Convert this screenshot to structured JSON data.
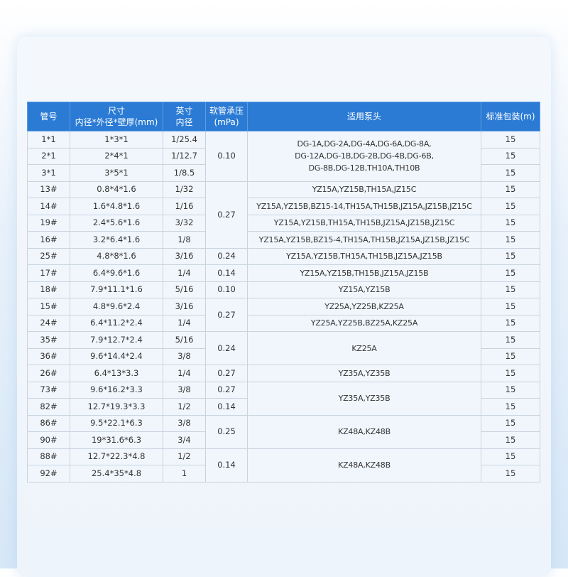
{
  "headers": [
    "管号",
    "尺寸\n内径*外径*壁厚(mm)",
    "英寸\n内径",
    "软管承压\n(mPa)",
    "适用泵头",
    "标准包装(m)"
  ],
  "rows": [
    [
      "1*1",
      "1*3*1",
      "1/25.4",
      "0.10",
      "DG-1A,DG-2A,DG-4A,DG-6A,DG-8A,\nDG-12A,DG-1B,DG-2B,DG-4B,DG-6B,\nDG-8B,DG-12B,TH10A,TH10B",
      "15"
    ],
    [
      "2*1",
      "2*4*1",
      "1/12.7",
      null,
      null,
      "15"
    ],
    [
      "3*1",
      "3*5*1",
      "1/8.5",
      null,
      null,
      "15"
    ],
    [
      "13#",
      "0.8*4*1.6",
      "1/32",
      "0.27",
      "YZ15A,YZ15B,TH15A,JZ15C",
      "15"
    ],
    [
      "14#",
      "1.6*4.8*1.6",
      "1/16",
      null,
      "YZ15A,YZ15B,BZ15-14,TH15A,TH15B,JZ15A,JZ15B,JZ15C",
      "15"
    ],
    [
      "19#",
      "2.4*5.6*1.6",
      "3/32",
      null,
      "YZ15A,YZ15B,TH15A,TH15B,JZ15A,JZ15B,JZ15C",
      "15"
    ],
    [
      "16#",
      "3.2*6.4*1.6",
      "1/8",
      null,
      "YZ15A,YZ15B,BZ15-4,TH15A,TH15B,JZ15A,JZ15B,JZ15C",
      "15"
    ],
    [
      "25#",
      "4.8*8*1.6",
      "3/16",
      "0.24",
      "YZ15A,YZ15B,TH15A,TH15B,JZ15A,JZ15B",
      "15"
    ],
    [
      "17#",
      "6.4*9.6*1.6",
      "1/4",
      "0.14",
      "YZ15A,YZ15B,TH15B,JZ15A,JZ15B",
      "15"
    ],
    [
      "18#",
      "7.9*11.1*1.6",
      "5/16",
      "0.10",
      "YZ15A,YZ15B",
      "15"
    ],
    [
      "15#",
      "4.8*9.6*2.4",
      "3/16",
      "0.27",
      "YZ25A,YZ25B,KZ25A",
      "15"
    ],
    [
      "24#",
      "6.4*11.2*2.4",
      "1/4",
      null,
      "YZ25A,YZ25B,BZ25A,KZ25A",
      "15"
    ],
    [
      "35#",
      "7.9*12.7*2.4",
      "5/16",
      "0.24",
      "KZ25A",
      "15"
    ],
    [
      "36#",
      "9.6*14.4*2.4",
      "3/8",
      null,
      null,
      "15"
    ],
    [
      "26#",
      "6.4*13*3.3",
      "1/4",
      "0.27",
      "YZ35A,YZ35B",
      "15"
    ],
    [
      "73#",
      "9.6*16.2*3.3",
      "3/8",
      "0.27",
      "YZ35A,YZ35B",
      "15"
    ],
    [
      "82#",
      "12.7*19.3*3.3",
      "1/2",
      "0.14",
      null,
      "15"
    ],
    [
      "86#",
      "9.5*22.1*6.3",
      "3/8",
      "0.25",
      "KZ48A,KZ48B",
      "15"
    ],
    [
      "90#",
      "19*31.6*6.3",
      "3/4",
      null,
      null,
      "15"
    ],
    [
      "88#",
      "12.7*22.3*4.8",
      "1/2",
      "0.14",
      "KZ48A,KZ48B",
      "15"
    ],
    [
      "92#",
      "25.4*35*4.8",
      "1",
      null,
      null,
      "15"
    ]
  ],
  "colors": {
    "header_bg": "#2b7bd5",
    "cell_bg": "#f1f6fc",
    "border": "#c9d3de"
  }
}
